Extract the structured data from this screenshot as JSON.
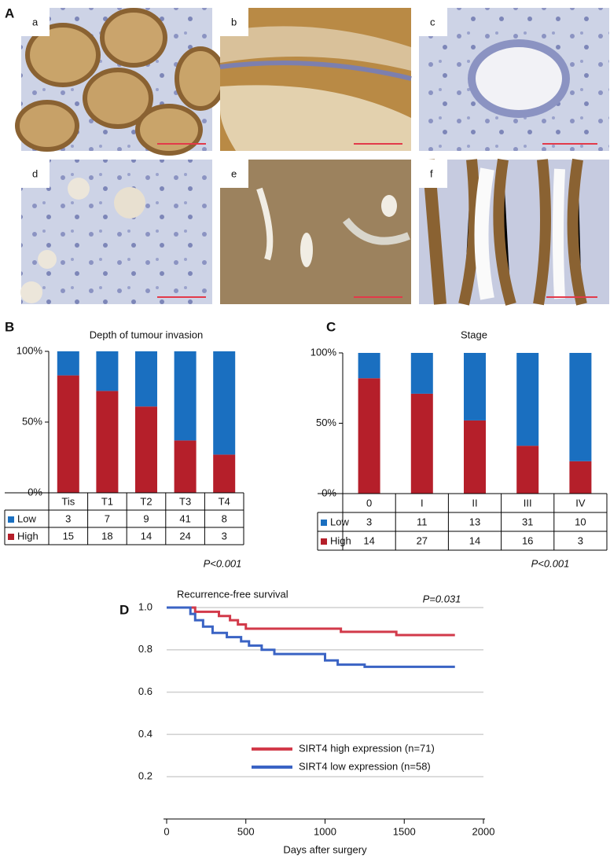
{
  "figure": {
    "panel_labels": [
      "A",
      "B",
      "C",
      "D"
    ],
    "micrographs": [
      "a",
      "b",
      "c",
      "d",
      "e",
      "f"
    ]
  },
  "chart_data": [
    {
      "type": "stacked_bar",
      "title": "Depth of tumour invasion",
      "categories": [
        "Tis",
        "T1",
        "T2",
        "T3",
        "T4"
      ],
      "ylim": [
        0,
        100
      ],
      "yticks": [
        {
          "value": 0,
          "label": "0%"
        },
        {
          "value": 50,
          "label": "50%"
        },
        {
          "value": 100,
          "label": "100%"
        }
      ],
      "series": [
        {
          "name": "High",
          "color": "#b51f2a",
          "values": [
            83,
            72,
            61,
            37,
            27
          ],
          "counts": [
            15,
            18,
            14,
            24,
            3
          ]
        },
        {
          "name": "Low",
          "color": "#1a6fc0",
          "values": [
            17,
            28,
            39,
            63,
            73
          ],
          "counts": [
            3,
            7,
            9,
            41,
            8
          ]
        }
      ],
      "annotation": "P<0.001"
    },
    {
      "type": "stacked_bar",
      "title": "Stage",
      "categories": [
        "0",
        "I",
        "II",
        "III",
        "IV"
      ],
      "ylim": [
        0,
        100
      ],
      "yticks": [
        {
          "value": 0,
          "label": "0%"
        },
        {
          "value": 50,
          "label": "50%"
        },
        {
          "value": 100,
          "label": "100%"
        }
      ],
      "series": [
        {
          "name": "High",
          "color": "#b51f2a",
          "values": [
            82,
            71,
            52,
            34,
            23
          ],
          "counts": [
            14,
            27,
            14,
            16,
            3
          ]
        },
        {
          "name": "Low",
          "color": "#1a6fc0",
          "values": [
            18,
            29,
            48,
            66,
            77
          ],
          "counts": [
            3,
            11,
            13,
            31,
            10
          ]
        }
      ],
      "annotation": "P<0.001"
    },
    {
      "type": "step_line",
      "title": "Recurrence-free survival",
      "x_label": "Days after surgery",
      "xlim": [
        0,
        2000
      ],
      "xticks": [
        0,
        500,
        1000,
        1500,
        2000
      ],
      "ylim": [
        0,
        1
      ],
      "yticks": [
        0.2,
        0.4,
        0.6,
        0.8,
        {
          "value": 1,
          "label": "1.0"
        }
      ],
      "grid": true,
      "series": [
        {
          "name": "SIRT4 high expression (n=71)",
          "color": "#d23a4a",
          "x": [
            0,
            180,
            180,
            330,
            330,
            400,
            400,
            450,
            450,
            500,
            500,
            1100,
            1100,
            1450,
            1450,
            1820
          ],
          "values": [
            1,
            1,
            0.98,
            0.98,
            0.96,
            0.96,
            0.94,
            0.94,
            0.92,
            0.92,
            0.9,
            0.9,
            0.885,
            0.885,
            0.87,
            0.87
          ]
        },
        {
          "name": "SIRT4 low expression (n=58)",
          "color": "#3a63c4",
          "x": [
            0,
            150,
            150,
            180,
            180,
            230,
            230,
            290,
            290,
            380,
            380,
            470,
            470,
            520,
            520,
            600,
            600,
            680,
            680,
            1000,
            1000,
            1080,
            1080,
            1250,
            1250,
            1820
          ],
          "values": [
            1,
            1,
            0.97,
            0.97,
            0.94,
            0.94,
            0.91,
            0.91,
            0.88,
            0.88,
            0.86,
            0.86,
            0.84,
            0.84,
            0.82,
            0.82,
            0.8,
            0.8,
            0.78,
            0.78,
            0.75,
            0.75,
            0.73,
            0.73,
            0.72,
            0.72
          ]
        }
      ],
      "annotation": "P=0.031"
    }
  ]
}
